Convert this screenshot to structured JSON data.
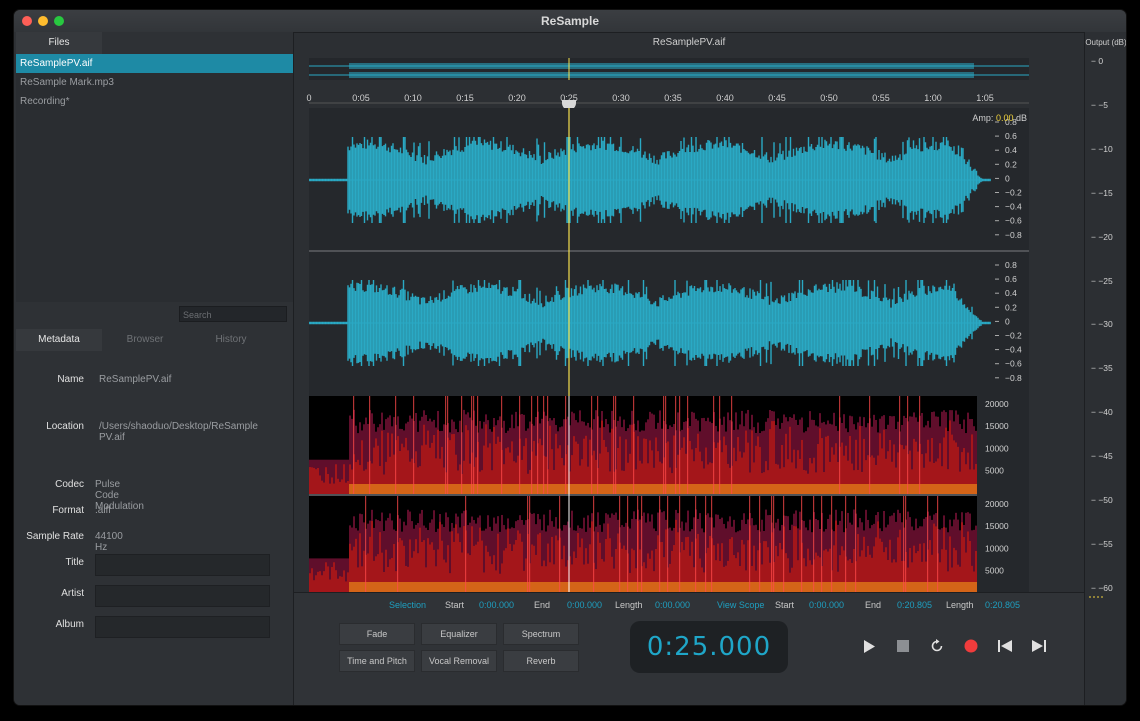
{
  "window": {
    "title": "ReSample"
  },
  "files": {
    "tab_label": "Files",
    "items": [
      {
        "label": "ReSamplePV.aif",
        "selected": true
      },
      {
        "label": "ReSample Mark.mp3",
        "selected": false
      },
      {
        "label": "Recording*",
        "selected": false
      }
    ],
    "search_placeholder": "Search"
  },
  "meta_tabs": [
    "Metadata",
    "Browser",
    "History"
  ],
  "metadata": {
    "name_label": "Name",
    "name": "ReSamplePV.aif",
    "location_label": "Location",
    "location_1": "/Users/shaoduo/Desktop/ReSample",
    "location_2": "PV.aif",
    "codec_label": "Codec",
    "codec": "Pulse Code Modulation",
    "format_label": "Format",
    "format": ".aiff",
    "rate_label": "Sample Rate",
    "rate": "44100 Hz",
    "title_label": "Title",
    "artist_label": "Artist",
    "album_label": "Album"
  },
  "editor": {
    "file_title": "ReSamplePV.aif",
    "ruler_ticks": [
      "0",
      "0:05",
      "0:10",
      "0:15",
      "0:20",
      "0:25",
      "0:30",
      "0:35",
      "0:40",
      "0:45",
      "0:50",
      "0:55",
      "1:00",
      "1:05"
    ],
    "amp_label": "Amp:",
    "amp_value": "0.00",
    "amp_unit": "dB",
    "wave_ticks": [
      "0.8",
      "0.6",
      "0.4",
      "0.2",
      "0",
      "−0.2",
      "−0.4",
      "−0.6",
      "−0.8"
    ],
    "freq_ticks": [
      "20000",
      "15000",
      "10000",
      "5000"
    ],
    "playhead_time": "0:25"
  },
  "selection": {
    "label": "Selection",
    "start_label": "Start",
    "start": "0:00.000",
    "end_label": "End",
    "end": "0:00.000",
    "length_label": "Length",
    "length": "0:00.000"
  },
  "view_scope": {
    "label": "View Scope",
    "start_label": "Start",
    "start": "0:00.000",
    "end_label": "End",
    "end": "0:20.805",
    "length_label": "Length",
    "length": "0:20.805"
  },
  "effects": [
    "Fade",
    "Equalizer",
    "Spectrum",
    "Time and Pitch",
    "Vocal Removal",
    "Reverb"
  ],
  "transport": {
    "time": "0:25.000",
    "icons": [
      "play-icon",
      "stop-icon",
      "loop-icon",
      "record-icon",
      "skip-back-icon",
      "skip-forward-icon"
    ]
  },
  "output": {
    "title": "Output (dB)",
    "ticks": [
      "− 0",
      "− −5",
      "− −10",
      "− −15",
      "− −20",
      "− −25",
      "− −30",
      "− −35",
      "− −40",
      "− −45",
      "− −50",
      "− −55",
      "− −60"
    ]
  },
  "colors": {
    "accent": "#1e9fc0",
    "wave": "#2aa9c4",
    "playhead": "#f4e04d",
    "record": "#f03c3c"
  }
}
